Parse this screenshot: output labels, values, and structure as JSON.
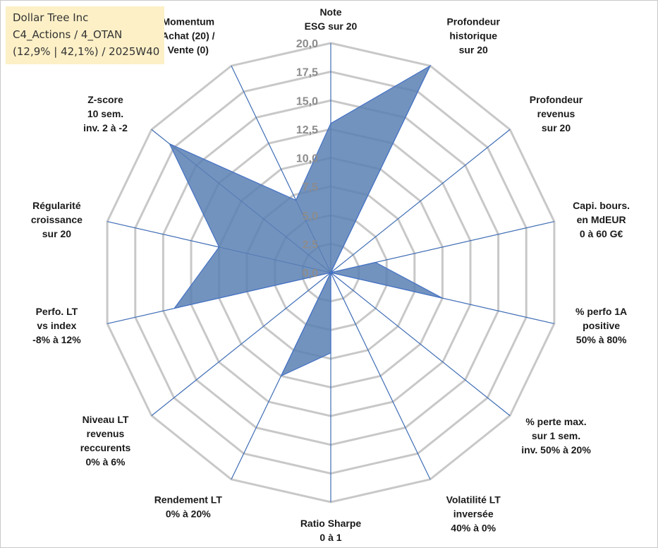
{
  "title_box": {
    "line1": "Dollar Tree Inc",
    "line2": "C4_Actions / 4_OTAN",
    "line3": "(12,9% | 42,1%) / 2025W40"
  },
  "colors": {
    "series_fill": "#5a80b4",
    "series_line": "#4472c4",
    "spokes": "#3f6db5",
    "grid": "#c8c8c8",
    "title_bg": "#fdf0c7"
  },
  "chart_data": {
    "type": "radar",
    "range": [
      0,
      20
    ],
    "tick_step": 2.5,
    "tick_labels": [
      "0,0",
      "2,5",
      "5,0",
      "7,5",
      "10,0",
      "12,5",
      "15,0",
      "17,5",
      "20,0"
    ],
    "axes": [
      {
        "label": [
          "Note",
          "ESG sur 20"
        ],
        "value": 13.0
      },
      {
        "label": [
          "Profondeur",
          "historique",
          "sur 20"
        ],
        "value": 20.0
      },
      {
        "label": [
          "Profondeur",
          "revenus",
          "sur 20"
        ],
        "value": 0.0
      },
      {
        "label": [
          "Capi. bours.",
          "en MdEUR",
          "0 à 60 G€"
        ],
        "value": 4.0
      },
      {
        "label": [
          "% perfo 1A",
          "positive",
          "50% à 80%"
        ],
        "value": 10.0
      },
      {
        "label": [
          "% perte max.",
          "sur 1 sem.",
          "inv. 50% à 20%"
        ],
        "value": 0.0
      },
      {
        "label": [
          "Volatilité LT",
          "inversée",
          "40% à 0%"
        ],
        "value": 0.0
      },
      {
        "label": [
          "Ratio Sharpe",
          "0 à 1"
        ],
        "value": 7.0
      },
      {
        "label": [
          "Rendement LT",
          "0% à 20%"
        ],
        "value": 10.0
      },
      {
        "label": [
          "Niveau LT",
          "revenus",
          "reccurents",
          "0% à 6%"
        ],
        "value": 0.0
      },
      {
        "label": [
          "Perfo. LT",
          "vs index",
          "-8% à 12%"
        ],
        "value": 14.0
      },
      {
        "label": [
          "Régularité",
          "croissance",
          "sur 20"
        ],
        "value": 10.0
      },
      {
        "label": [
          "Z-score",
          "10 sem.",
          "inv. 2 à -2"
        ],
        "value": 18.0
      },
      {
        "label": [
          "Momentum",
          "Achat (20) /",
          "Vente (0)"
        ],
        "value": 7.0
      }
    ]
  }
}
